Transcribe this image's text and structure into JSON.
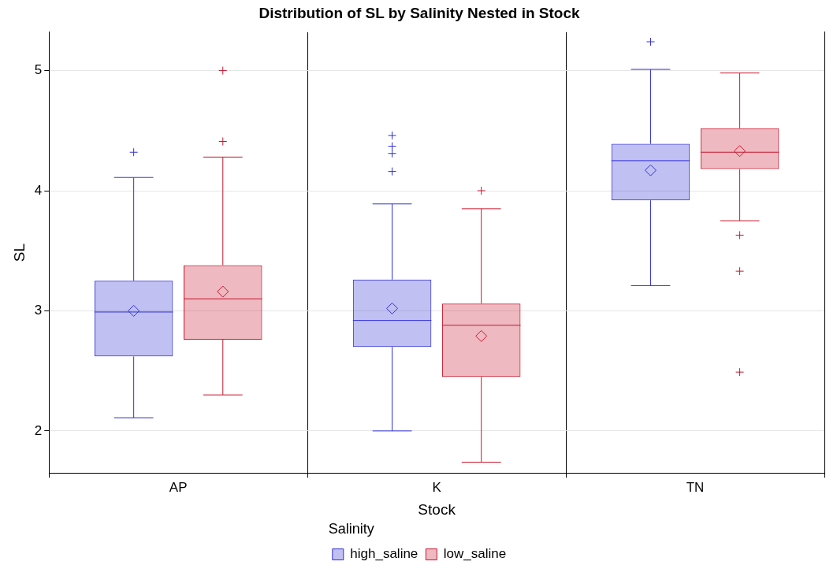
{
  "chart_data": {
    "type": "box",
    "title": "Distribution of SL by Salinity Nested in Stock",
    "xlabel": "Stock",
    "ylabel": "SL",
    "legend_title": "Salinity",
    "categories": [
      "AP",
      "K",
      "TN"
    ],
    "series": [
      {
        "name": "high_saline",
        "color": "#3030d8",
        "boxes": [
          {
            "low": 2.11,
            "q1": 2.62,
            "median": 2.99,
            "q3": 3.25,
            "high": 4.11,
            "mean": 3.0,
            "outliers": [
              4.32
            ]
          },
          {
            "low": 2.0,
            "q1": 2.7,
            "median": 2.92,
            "q3": 3.26,
            "high": 3.89,
            "mean": 3.02,
            "outliers": [
              4.46,
              4.37,
              4.31,
              4.16
            ]
          },
          {
            "low": 3.21,
            "q1": 3.92,
            "median": 4.25,
            "q3": 4.39,
            "high": 5.01,
            "mean": 4.17,
            "outliers": [
              5.24
            ]
          }
        ]
      },
      {
        "name": "low_saline",
        "color": "#c8182e",
        "boxes": [
          {
            "low": 2.3,
            "q1": 2.76,
            "median": 3.1,
            "q3": 3.38,
            "high": 4.28,
            "mean": 3.16,
            "outliers": [
              4.41,
              5.0
            ]
          },
          {
            "low": 1.74,
            "q1": 2.45,
            "median": 2.88,
            "q3": 3.06,
            "high": 3.85,
            "mean": 2.79,
            "outliers": [
              4.0
            ]
          },
          {
            "low": 3.75,
            "q1": 4.18,
            "median": 4.32,
            "q3": 4.52,
            "high": 4.98,
            "mean": 4.33,
            "outliers": [
              3.63,
              3.33,
              2.49
            ]
          }
        ]
      }
    ],
    "ylim": [
      1.65,
      5.32
    ],
    "yticks": [
      2,
      3,
      4,
      5
    ],
    "grid": "y",
    "legend": "bottom"
  }
}
